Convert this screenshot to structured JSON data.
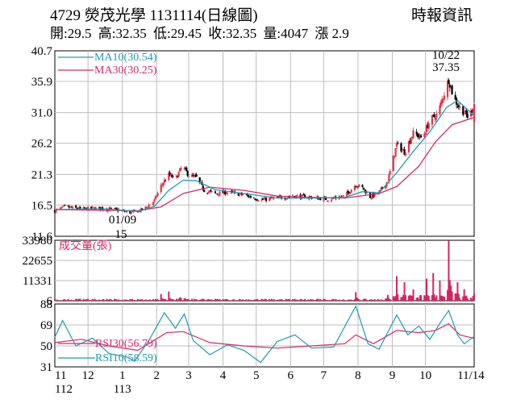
{
  "header": {
    "title": "4729  熒茂光學 1131114(日線圖)",
    "source": "時報資訊",
    "ohlc": {
      "open_label": "開:",
      "open": "29.5",
      "high_label": "高:",
      "high": "32.35",
      "low_label": "低:",
      "low": "29.45",
      "close_label": "收:",
      "close": "32.35",
      "volume_label": "量:",
      "volume": "4047",
      "change_label": "漲",
      "change": "2.9"
    }
  },
  "colors": {
    "up": "#e8334a",
    "down": "#000000",
    "ma10": "#1f9bb0",
    "ma30": "#d12a6a",
    "volume": "#d6245f",
    "rsi10": "#1f9bb0",
    "rsi30": "#d12a6a",
    "grid": "#bdbdbd"
  },
  "chart_data": [
    {
      "type": "candlestick",
      "panel": "price",
      "ylim": [
        11.6,
        40.7
      ],
      "y_ticks": [
        "40.7",
        "35.9",
        "31.0",
        "26.2",
        "21.3",
        "16.5",
        "11.6"
      ],
      "grid": true,
      "legend": [
        {
          "label": "MA10(30.54)",
          "color": "#1f9bb0"
        },
        {
          "label": "MA30(30.25)",
          "color": "#d12a6a"
        }
      ],
      "annotations": [
        {
          "text": "10/22",
          "note": "high date"
        },
        {
          "text": "37.35",
          "note": "high value"
        },
        {
          "text": "01/09",
          "note": "low date"
        },
        {
          "text": "15",
          "note": "low value"
        }
      ],
      "close_path": [
        [
          "2023-11-01",
          15.6
        ],
        [
          "2023-11-10",
          16.2
        ],
        [
          "2023-11-25",
          15.9
        ],
        [
          "2023-12-10",
          16.0
        ],
        [
          "2023-12-25",
          15.8
        ],
        [
          "2024-01-09",
          15.3
        ],
        [
          "2024-01-20",
          15.8
        ],
        [
          "2024-01-30",
          17.2
        ],
        [
          "2024-02-05",
          19.5
        ],
        [
          "2024-02-12",
          21.3
        ],
        [
          "2024-02-18",
          20.5
        ],
        [
          "2024-02-24",
          22.6
        ],
        [
          "2024-03-01",
          21.2
        ],
        [
          "2024-03-08",
          20.8
        ],
        [
          "2024-03-15",
          18.8
        ],
        [
          "2024-03-25",
          18.3
        ],
        [
          "2024-04-05",
          18.5
        ],
        [
          "2024-04-20",
          18.1
        ],
        [
          "2024-05-05",
          17.3
        ],
        [
          "2024-05-20",
          17.6
        ],
        [
          "2024-06-05",
          17.9
        ],
        [
          "2024-06-20",
          17.7
        ],
        [
          "2024-07-05",
          17.4
        ],
        [
          "2024-07-20",
          17.9
        ],
        [
          "2024-07-30",
          19.7
        ],
        [
          "2024-08-05",
          19.2
        ],
        [
          "2024-08-12",
          17.8
        ],
        [
          "2024-08-20",
          18.4
        ],
        [
          "2024-08-28",
          20.3
        ],
        [
          "2024-09-05",
          26.0
        ],
        [
          "2024-09-12",
          24.8
        ],
        [
          "2024-09-20",
          27.8
        ],
        [
          "2024-09-28",
          27.0
        ],
        [
          "2024-10-05",
          29.8
        ],
        [
          "2024-10-12",
          30.8
        ],
        [
          "2024-10-22",
          36.2
        ],
        [
          "2024-10-26",
          33.6
        ],
        [
          "2024-10-30",
          32.2
        ],
        [
          "2024-11-04",
          31.2
        ],
        [
          "2024-11-09",
          30.2
        ],
        [
          "2024-11-14",
          32.35
        ]
      ],
      "ma10_path": [
        [
          "2023-11-01",
          15.8
        ],
        [
          "2023-12-15",
          15.9
        ],
        [
          "2024-01-15",
          15.5
        ],
        [
          "2024-01-30",
          16.3
        ],
        [
          "2024-02-12",
          18.8
        ],
        [
          "2024-02-25",
          20.4
        ],
        [
          "2024-03-08",
          20.3
        ],
        [
          "2024-03-25",
          18.9
        ],
        [
          "2024-04-20",
          18.3
        ],
        [
          "2024-05-20",
          17.6
        ],
        [
          "2024-06-20",
          17.6
        ],
        [
          "2024-07-20",
          17.7
        ],
        [
          "2024-08-05",
          18.6
        ],
        [
          "2024-08-20",
          18.4
        ],
        [
          "2024-09-05",
          21.6
        ],
        [
          "2024-09-20",
          24.9
        ],
        [
          "2024-10-05",
          28.0
        ],
        [
          "2024-10-20",
          31.8
        ],
        [
          "2024-10-30",
          32.9
        ],
        [
          "2024-11-14",
          30.54
        ]
      ],
      "ma30_path": [
        [
          "2023-11-01",
          15.8
        ],
        [
          "2024-01-15",
          15.6
        ],
        [
          "2024-02-05",
          16.2
        ],
        [
          "2024-02-25",
          18.3
        ],
        [
          "2024-03-20",
          19.3
        ],
        [
          "2024-04-20",
          18.8
        ],
        [
          "2024-05-20",
          17.9
        ],
        [
          "2024-06-20",
          17.7
        ],
        [
          "2024-07-20",
          17.6
        ],
        [
          "2024-08-20",
          18.3
        ],
        [
          "2024-09-05",
          19.4
        ],
        [
          "2024-09-25",
          22.6
        ],
        [
          "2024-10-10",
          26.4
        ],
        [
          "2024-10-25",
          29.1
        ],
        [
          "2024-11-14",
          30.25
        ]
      ]
    },
    {
      "type": "bar",
      "panel": "volume",
      "label": "成交量(張)",
      "ylim": [
        6,
        33980
      ],
      "y_ticks": [
        "33980",
        "22655",
        "11331",
        "6"
      ],
      "spikes": [
        [
          "2024-02-05",
          3800
        ],
        [
          "2024-02-12",
          5200
        ],
        [
          "2024-02-24",
          5800
        ],
        [
          "2024-07-30",
          4800
        ],
        [
          "2024-08-28",
          3300
        ],
        [
          "2024-09-05",
          13800
        ],
        [
          "2024-09-12",
          10400
        ],
        [
          "2024-09-20",
          6400
        ],
        [
          "2024-10-02",
          12400
        ],
        [
          "2024-10-08",
          15600
        ],
        [
          "2024-10-14",
          11400
        ],
        [
          "2024-10-22",
          33980
        ],
        [
          "2024-10-26",
          21800
        ],
        [
          "2024-10-30",
          10400
        ],
        [
          "2024-11-05",
          6500
        ],
        [
          "2024-11-14",
          4047
        ]
      ]
    },
    {
      "type": "line",
      "panel": "rsi",
      "ylim": [
        31,
        88
      ],
      "y_ticks": [
        "88",
        "69",
        "50",
        "31"
      ],
      "series": [
        {
          "name": "RSI30(56.79)",
          "color": "#d12a6a",
          "path": [
            [
              "2023-11-01",
              53
            ],
            [
              "2023-11-25",
              56
            ],
            [
              "2023-12-20",
              50
            ],
            [
              "2024-01-15",
              46
            ],
            [
              "2024-02-10",
              62
            ],
            [
              "2024-02-25",
              63
            ],
            [
              "2024-03-20",
              53
            ],
            [
              "2024-04-20",
              50
            ],
            [
              "2024-05-20",
              48
            ],
            [
              "2024-06-20",
              50
            ],
            [
              "2024-07-20",
              52
            ],
            [
              "2024-07-30",
              60
            ],
            [
              "2024-08-15",
              52
            ],
            [
              "2024-09-05",
              64
            ],
            [
              "2024-09-25",
              62
            ],
            [
              "2024-10-10",
              64
            ],
            [
              "2024-10-22",
              70
            ],
            [
              "2024-11-01",
              60
            ],
            [
              "2024-11-14",
              56.79
            ]
          ]
        },
        {
          "name": "RSI10(58.59)",
          "color": "#1f9bb0",
          "path": [
            [
              "2023-11-01",
              58
            ],
            [
              "2023-11-08",
              73
            ],
            [
              "2023-11-20",
              50
            ],
            [
              "2023-12-05",
              57
            ],
            [
              "2023-12-20",
              43
            ],
            [
              "2024-01-05",
              40
            ],
            [
              "2024-01-12",
              36
            ],
            [
              "2024-01-25",
              55
            ],
            [
              "2024-02-08",
              80
            ],
            [
              "2024-02-18",
              66
            ],
            [
              "2024-02-26",
              79
            ],
            [
              "2024-03-05",
              55
            ],
            [
              "2024-03-20",
              42
            ],
            [
              "2024-04-05",
              51
            ],
            [
              "2024-04-20",
              46
            ],
            [
              "2024-05-05",
              35
            ],
            [
              "2024-05-20",
              54
            ],
            [
              "2024-06-05",
              60
            ],
            [
              "2024-06-20",
              48
            ],
            [
              "2024-07-10",
              49
            ],
            [
              "2024-07-30",
              86
            ],
            [
              "2024-08-10",
              52
            ],
            [
              "2024-08-20",
              47
            ],
            [
              "2024-09-05",
              78
            ],
            [
              "2024-09-15",
              60
            ],
            [
              "2024-09-25",
              68
            ],
            [
              "2024-10-05",
              56
            ],
            [
              "2024-10-15",
              72
            ],
            [
              "2024-10-22",
              82
            ],
            [
              "2024-10-30",
              60
            ],
            [
              "2024-11-05",
              52
            ],
            [
              "2024-11-14",
              58.59
            ]
          ]
        }
      ]
    }
  ],
  "x_axis": {
    "start": "2023-11-01",
    "end": "2024-11-14",
    "ticks": [
      {
        "date": "2023-11-01",
        "label": "11"
      },
      {
        "date": "2023-12-01",
        "label": "12"
      },
      {
        "date": "2024-01-01",
        "label": "1"
      },
      {
        "date": "2024-02-01",
        "label": "2"
      },
      {
        "date": "2024-03-01",
        "label": "3"
      },
      {
        "date": "2024-04-01",
        "label": "4"
      },
      {
        "date": "2024-05-01",
        "label": "5"
      },
      {
        "date": "2024-06-01",
        "label": "6"
      },
      {
        "date": "2024-07-01",
        "label": "7"
      },
      {
        "date": "2024-08-01",
        "label": "8"
      },
      {
        "date": "2024-09-01",
        "label": "9"
      },
      {
        "date": "2024-10-01",
        "label": "10"
      },
      {
        "date": "2024-11-14",
        "label": "11/14"
      }
    ],
    "year_labels": [
      {
        "date": "2023-11-01",
        "label": "112"
      },
      {
        "date": "2024-01-01",
        "label": "113"
      }
    ]
  }
}
